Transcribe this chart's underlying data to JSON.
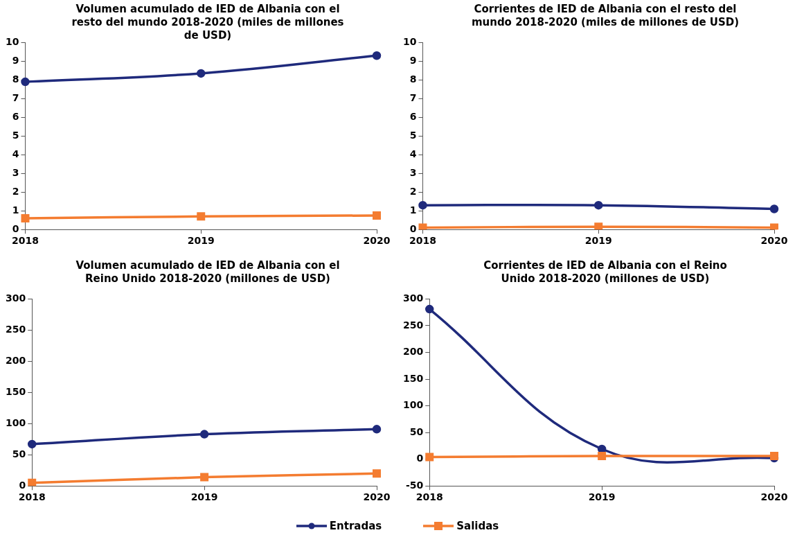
{
  "chart_data": [
    {
      "type": "line",
      "title": "Volumen acumulado de IED de Albania con el resto del mundo 2018-2020 (miles de millones de USD)",
      "categories": [
        "2018",
        "2019",
        "2020"
      ],
      "series": [
        {
          "name": "Entradas",
          "color": "#1f2a7c",
          "marker": "circle",
          "values": [
            7.9,
            8.35,
            9.3
          ]
        },
        {
          "name": "Salidas",
          "color": "#f47c30",
          "marker": "square",
          "values": [
            0.6,
            0.7,
            0.75
          ]
        }
      ],
      "ylim": [
        0,
        10
      ],
      "yticks": [
        0,
        1,
        2,
        3,
        4,
        5,
        6,
        7,
        8,
        9,
        10
      ],
      "grid": false,
      "legend": "bottom"
    },
    {
      "type": "line",
      "title": "Corrientes de IED de Albania con el resto del mundo 2018-2020 (miles de millones de USD)",
      "categories": [
        "2018",
        "2019",
        "2020"
      ],
      "series": [
        {
          "name": "Entradas",
          "color": "#1f2a7c",
          "marker": "circle",
          "values": [
            1.3,
            1.3,
            1.1
          ]
        },
        {
          "name": "Salidas",
          "color": "#f47c30",
          "marker": "square",
          "values": [
            0.1,
            0.15,
            0.1
          ]
        }
      ],
      "ylim": [
        0,
        10
      ],
      "yticks": [
        0,
        1,
        2,
        3,
        4,
        5,
        6,
        7,
        8,
        9,
        10
      ],
      "grid": false,
      "legend": "bottom"
    },
    {
      "type": "line",
      "title": "Volumen acumulado de IED de Albania con el Reino Unido 2018-2020 (millones de USD)",
      "categories": [
        "2018",
        "2019",
        "2020"
      ],
      "series": [
        {
          "name": "Entradas",
          "color": "#1f2a7c",
          "marker": "circle",
          "values": [
            67,
            83,
            91
          ]
        },
        {
          "name": "Salidas",
          "color": "#f47c30",
          "marker": "square",
          "values": [
            5,
            14,
            20
          ]
        }
      ],
      "ylim": [
        0,
        300
      ],
      "yticks": [
        0,
        50,
        100,
        150,
        200,
        250,
        300
      ],
      "grid": false,
      "legend": "bottom"
    },
    {
      "type": "line",
      "title": "Corrientes de IED de Albania con el Reino Unido 2018-2020 (millones de USD)",
      "categories": [
        "2018",
        "2019",
        "2020"
      ],
      "series": [
        {
          "name": "Entradas",
          "color": "#1f2a7c",
          "marker": "circle",
          "values": [
            281,
            19,
            2
          ]
        },
        {
          "name": "Salidas",
          "color": "#f47c30",
          "marker": "square",
          "values": [
            4,
            6,
            6
          ]
        }
      ],
      "ylim": [
        -50,
        300
      ],
      "yticks": [
        -50,
        0,
        50,
        100,
        150,
        200,
        250,
        300
      ],
      "grid": false,
      "legend": "bottom"
    }
  ]
}
